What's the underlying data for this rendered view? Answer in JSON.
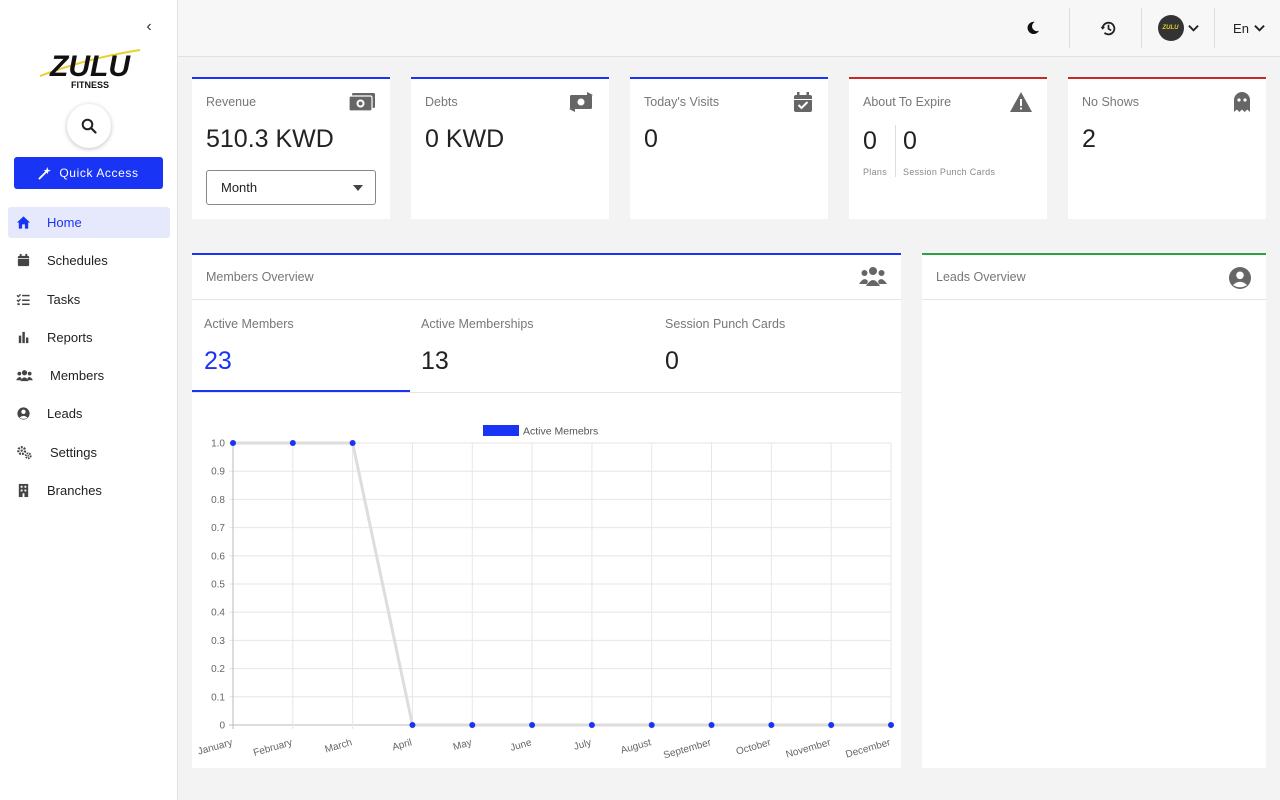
{
  "sidebar": {
    "logo": {
      "brand": "ZULU",
      "sub": "FITNESS"
    },
    "quick_access": "Quick Access",
    "items": [
      {
        "label": "Home",
        "icon": "home-icon",
        "active": true
      },
      {
        "label": "Schedules",
        "icon": "calendar-icon",
        "active": false
      },
      {
        "label": "Tasks",
        "icon": "checklist-icon",
        "active": false
      },
      {
        "label": "Reports",
        "icon": "bar-chart-icon",
        "active": false
      },
      {
        "label": "Members",
        "icon": "users-icon",
        "active": false
      },
      {
        "label": "Leads",
        "icon": "user-circle-icon",
        "active": false
      },
      {
        "label": "Settings",
        "icon": "gears-icon",
        "active": false
      },
      {
        "label": "Branches",
        "icon": "building-icon",
        "active": false
      }
    ]
  },
  "topbar": {
    "language": "En",
    "avatar_text": "ZULU"
  },
  "cards": {
    "revenue": {
      "title": "Revenue",
      "value": "510.3 KWD",
      "period": "Month"
    },
    "debts": {
      "title": "Debts",
      "value": "0 KWD"
    },
    "visits": {
      "title": "Today's Visits",
      "value": "0"
    },
    "expire": {
      "title": "About To Expire",
      "plans_value": "0",
      "plans_label": "Plans",
      "punch_value": "0",
      "punch_label": "Session Punch Cards"
    },
    "noshows": {
      "title": "No Shows",
      "value": "2"
    }
  },
  "members": {
    "title": "Members Overview",
    "tabs": [
      {
        "label": "Active Members",
        "value": "23"
      },
      {
        "label": "Active Memberships",
        "value": "13"
      },
      {
        "label": "Session Punch Cards",
        "value": "0"
      }
    ]
  },
  "leads": {
    "title": "Leads Overview"
  },
  "colors": {
    "accent": "#1a34f5",
    "danger": "#c62828",
    "success": "#2ea043"
  },
  "chart_data": {
    "type": "line",
    "categories": [
      "January",
      "February",
      "March",
      "April",
      "May",
      "June",
      "July",
      "August",
      "September",
      "October",
      "November",
      "December"
    ],
    "series": [
      {
        "name": "Active Memebrs",
        "values": [
          1,
          1,
          1,
          0,
          0,
          0,
          0,
          0,
          0,
          0,
          0,
          0
        ]
      }
    ],
    "ylim": [
      0,
      1.0
    ],
    "yticks": [
      "0",
      "0.1",
      "0.2",
      "0.3",
      "0.4",
      "0.5",
      "0.6",
      "0.7",
      "0.8",
      "0.9",
      "1.0"
    ],
    "grid": true,
    "legend": "top"
  }
}
